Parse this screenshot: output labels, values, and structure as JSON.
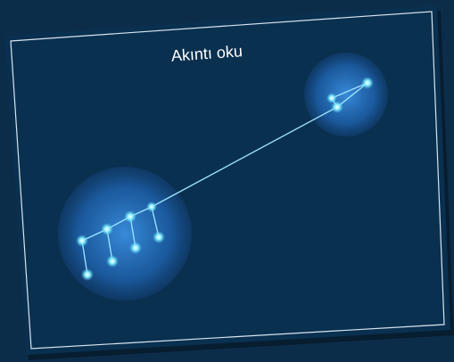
{
  "title": "Akıntı oku"
}
